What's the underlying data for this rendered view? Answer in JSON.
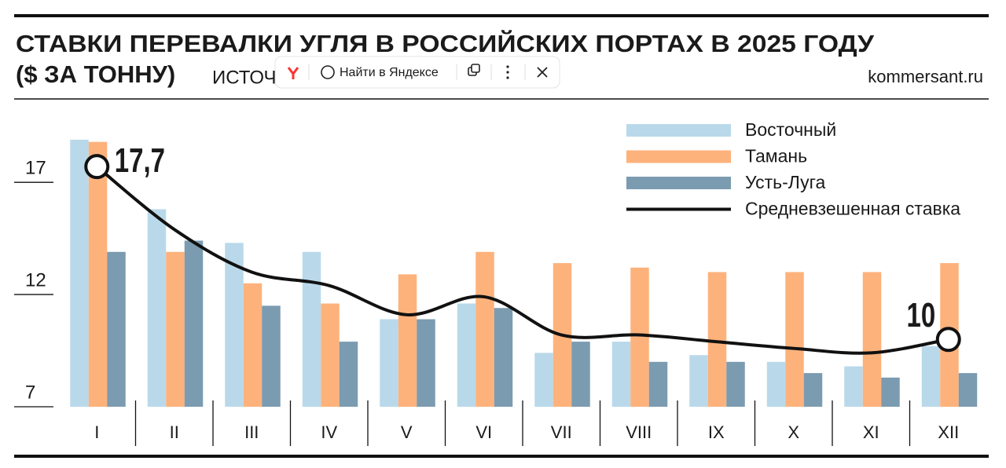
{
  "chart_data": {
    "type": "bar",
    "title": [
      "СТАВКИ ПЕРЕВАЛКИ УГЛЯ В РОССИЙСКИХ ПОРТАХ В 2025 ГОДУ",
      "($ ЗА ТОННУ)"
    ],
    "subtitle": "ИСТОЧН",
    "credit": "kommersant.ru",
    "categories": [
      "I",
      "II",
      "III",
      "IV",
      "V",
      "VI",
      "VII",
      "VIII",
      "IX",
      "X",
      "XI",
      "XII"
    ],
    "series": [
      {
        "name": "Восточный",
        "color": "#b9d9ea",
        "values": [
          18.9,
          15.8,
          14.3,
          13.9,
          10.9,
          11.6,
          9.4,
          9.9,
          9.3,
          9.0,
          8.8,
          9.7
        ]
      },
      {
        "name": "Тамань",
        "color": "#fdb27c",
        "values": [
          18.8,
          13.9,
          12.5,
          11.6,
          12.9,
          13.9,
          13.4,
          13.2,
          13.0,
          13.0,
          13.0,
          13.4
        ]
      },
      {
        "name": "Усть-Луга",
        "color": "#7b9bb0",
        "values": [
          13.9,
          14.4,
          11.5,
          9.9,
          10.9,
          11.4,
          9.9,
          9.0,
          9.0,
          8.5,
          8.3,
          8.5
        ]
      },
      {
        "name": "Средневзешенная ставка",
        "type": "line",
        "color": "#111111",
        "values": [
          17.7,
          14.9,
          13.0,
          12.4,
          11.1,
          11.9,
          10.2,
          10.2,
          9.9,
          9.6,
          9.4,
          10.0
        ],
        "value_labels": [
          "17,7",
          null,
          null,
          null,
          null,
          null,
          null,
          null,
          null,
          null,
          null,
          "10"
        ]
      }
    ],
    "ylim": [
      7,
      19
    ],
    "yticks": [
      7,
      12,
      17
    ],
    "legend": "top-right"
  },
  "overlay": {
    "search_label": "Найти в Яндексе"
  }
}
